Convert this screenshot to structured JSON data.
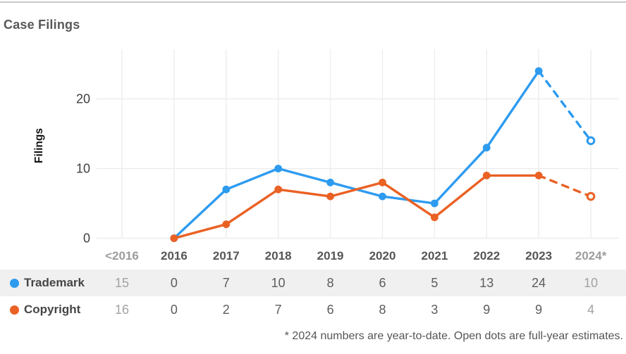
{
  "page": {
    "title": "Case Filings"
  },
  "colors": {
    "trademark": "#2d9bf0",
    "copyright": "#ea6124",
    "grid": "#ededed",
    "y_tick_text": "#3f3f3f",
    "x_tick_text": "#565656",
    "x_tick_muted": "#9c9c9c",
    "axis_title_text": "#141414",
    "row_stripe": "#f0f0f0"
  },
  "chart_data": {
    "type": "line",
    "title": "Case Filings",
    "xlabel": "",
    "ylabel": "Filings",
    "ylim": [
      0,
      27
    ],
    "yticks": [
      0,
      10,
      20
    ],
    "grid": true,
    "legend_position": "table-left",
    "categories": [
      "<2016",
      "2016",
      "2017",
      "2018",
      "2019",
      "2020",
      "2021",
      "2022",
      "2023",
      "2024*"
    ],
    "muted_categories": [
      "<2016",
      "2024*"
    ],
    "series": [
      {
        "name": "Trademark",
        "color": "#2d9bf0",
        "table_values": [
          "15",
          "0",
          "7",
          "10",
          "8",
          "6",
          "5",
          "13",
          "24",
          "10"
        ],
        "solid_categories": [
          "2016",
          "2017",
          "2018",
          "2019",
          "2020",
          "2021",
          "2022",
          "2023"
        ],
        "solid_values": [
          0,
          7,
          10,
          8,
          6,
          5,
          13,
          24
        ],
        "estimate": {
          "category": "2024*",
          "value": 14,
          "style": "dashed-open-dot"
        }
      },
      {
        "name": "Copyright",
        "color": "#ea6124",
        "table_values": [
          "16",
          "0",
          "2",
          "7",
          "6",
          "8",
          "3",
          "9",
          "9",
          "4"
        ],
        "solid_categories": [
          "2016",
          "2017",
          "2018",
          "2019",
          "2020",
          "2021",
          "2022",
          "2023"
        ],
        "solid_values": [
          0,
          2,
          7,
          6,
          8,
          3,
          9,
          9
        ],
        "estimate": {
          "category": "2024*",
          "value": 6,
          "style": "dashed-open-dot"
        }
      }
    ],
    "footnote": "* 2024 numbers are year-to-date. Open dots are full-year estimates."
  },
  "footnote": "* 2024 numbers are year-to-date. Open dots are full-year estimates."
}
